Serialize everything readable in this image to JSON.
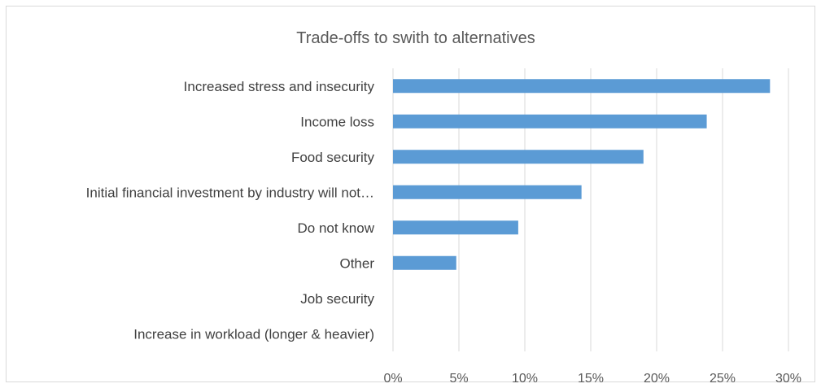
{
  "chart_data": {
    "type": "bar",
    "orientation": "horizontal",
    "title": "Trade-offs to swith to alternatives",
    "categories": [
      "Increased stress and insecurity",
      "Income loss",
      "Food security",
      "Initial financial investment by industry will not…",
      "Do not know",
      "Other",
      "Job security",
      "Increase in workload (longer & heavier)"
    ],
    "values": [
      28.6,
      23.8,
      19.0,
      14.3,
      9.5,
      4.8,
      0,
      0
    ],
    "xlim": [
      0,
      30
    ],
    "xticks": [
      "0%",
      "5%",
      "10%",
      "15%",
      "20%",
      "25%",
      "30%"
    ],
    "grid": true,
    "bar_color": "#5b9bd5"
  }
}
